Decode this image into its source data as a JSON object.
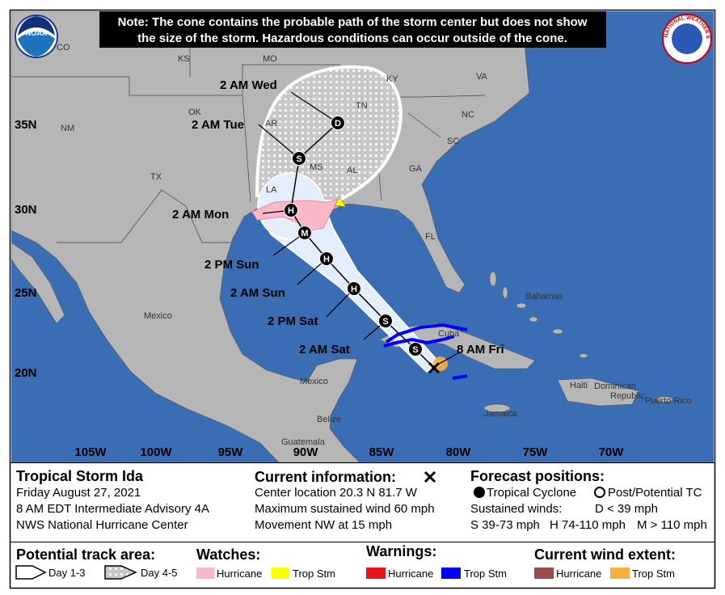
{
  "header": {
    "note": [
      "Note: The cone contains the probable path of the storm center but does not show",
      "the size of the storm. Hazardous conditions can occur outside of the cone."
    ],
    "noaa_logo": "NOAA",
    "nws_logo": "NATIONAL WEATHER SERVICE"
  },
  "map": {
    "latitudes": [
      "35N",
      "30N",
      "25N",
      "20N"
    ],
    "longitudes": [
      "105W",
      "100W",
      "95W",
      "90W",
      "85W",
      "80W",
      "75W",
      "70W"
    ],
    "places": [
      "CO",
      "KS",
      "MO",
      "KY",
      "VA",
      "OK",
      "AR",
      "TN",
      "NC",
      "NM",
      "SC",
      "TX",
      "MS",
      "AL",
      "GA",
      "LA",
      "FL",
      "Mexico",
      "Mexico",
      "Cuba",
      "Bahamas",
      "Haiti",
      "Dominican",
      "Republic",
      "Puerto Rico",
      "Jamaica",
      "Belize",
      "Guatemala"
    ],
    "forecast_points": [
      {
        "label": "2 AM Wed",
        "symbol": "D"
      },
      {
        "label": "2 AM Tue",
        "symbol": "S"
      },
      {
        "label": "2 AM Mon",
        "symbol": "H"
      },
      {
        "label": "2 PM Sun",
        "symbol": "M"
      },
      {
        "label": "2 AM Sun",
        "symbol": "H"
      },
      {
        "label": "2 PM Sat",
        "symbol": "H"
      },
      {
        "label": "2 AM Sat",
        "symbol": "S"
      },
      {
        "symbol": "S"
      }
    ],
    "current_label": "8 AM Fri"
  },
  "storm": {
    "title": "Tropical Storm Ida",
    "date": "Friday August 27, 2021",
    "advisory": "8 AM EDT Intermediate Advisory 4A",
    "source": "NWS National Hurricane Center"
  },
  "current": {
    "title": "Current information:",
    "lines": [
      "Center location 20.3 N 81.7 W",
      "Maximum sustained wind 60 mph",
      "Movement NW at 15 mph"
    ]
  },
  "forecast": {
    "title": "Forecast positions:",
    "tropical": "Tropical Cyclone",
    "post": "Post/Potential TC",
    "winds": "Sustained winds:",
    "d": "D < 39 mph",
    "s": "S 39-73 mph",
    "h": "H 74-110 mph",
    "m": "M > 110 mph"
  },
  "legend": {
    "track": {
      "title": "Potential track area:",
      "day13": "Day 1-3",
      "day45": "Day 4-5"
    },
    "watches": {
      "title": "Watches:",
      "hurricane": "Hurricane",
      "trop": "Trop Stm"
    },
    "warnings": {
      "title": "Warnings:",
      "hurricane": "Hurricane",
      "trop": "Trop Stm"
    },
    "wind": {
      "title": "Current wind extent:",
      "hurricane": "Hurricane",
      "trop": "Trop Stm"
    }
  }
}
